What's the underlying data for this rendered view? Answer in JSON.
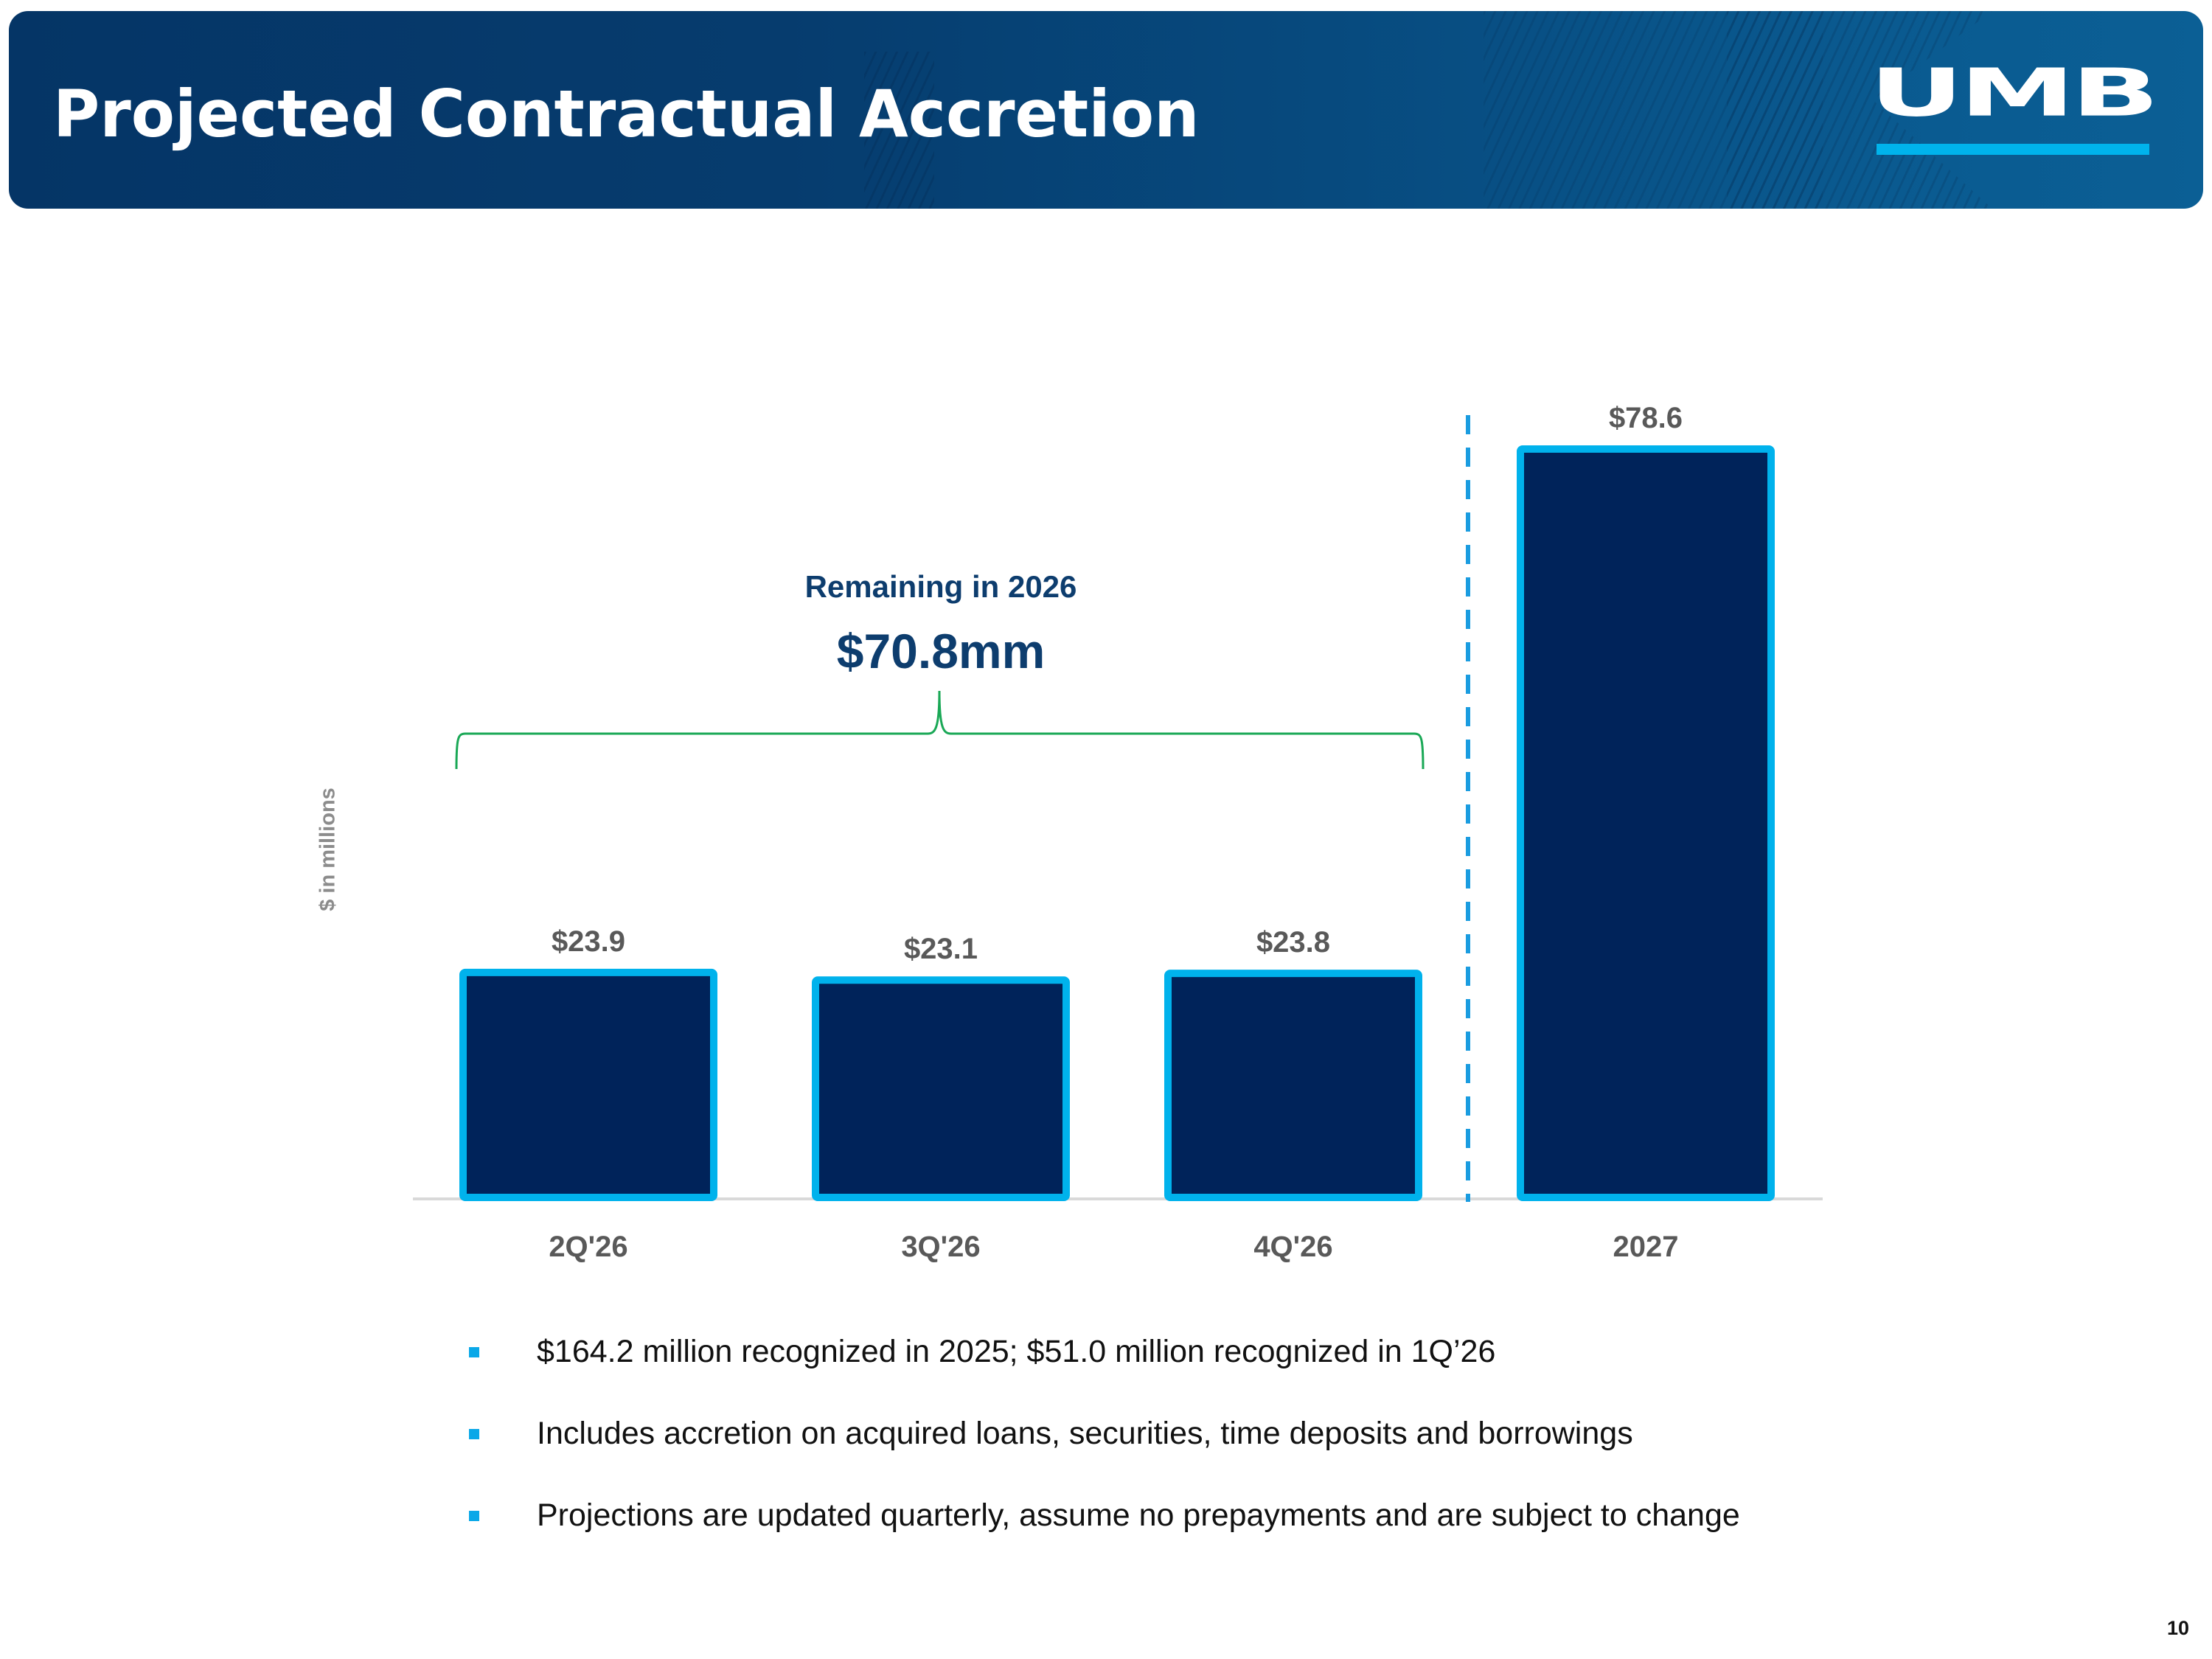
{
  "header": {
    "title": "Projected Contractual Accretion",
    "logo_text": "UMB"
  },
  "colors": {
    "bar_fill": "#00235a",
    "bar_border": "#00b2ec",
    "divider": "#1a9ce0",
    "bracket": "#1aa856",
    "callout_text": "#0d3d6e",
    "axis_line": "#d9d9d9",
    "label_text": "#595959"
  },
  "chart_data": {
    "type": "bar",
    "title": "",
    "xlabel": "",
    "ylabel": "$ in millions",
    "categories": [
      "2Q'26",
      "3Q'26",
      "4Q'26",
      "2027"
    ],
    "values": [
      23.9,
      23.1,
      23.8,
      78.6
    ],
    "data_labels": [
      "$23.9",
      "$23.1",
      "$23.8",
      "$78.6"
    ],
    "ylim": [
      0,
      78.6
    ],
    "grid": false,
    "legend": "none",
    "annotations": [
      {
        "type": "bracket",
        "spans": [
          "2Q'26",
          "3Q'26",
          "4Q'26"
        ],
        "label": "Remaining in 2026",
        "value": "$70.8mm"
      },
      {
        "type": "dashed-divider",
        "between": [
          "4Q'26",
          "2027"
        ]
      }
    ]
  },
  "bullets": [
    "$164.2 million recognized in 2025; $51.0 million recognized in 1Q’26",
    "Includes accretion on acquired loans, securities, time deposits and borrowings",
    "Projections are updated quarterly, assume no prepayments and are subject to change"
  ],
  "footer": {
    "page_number": "10"
  }
}
